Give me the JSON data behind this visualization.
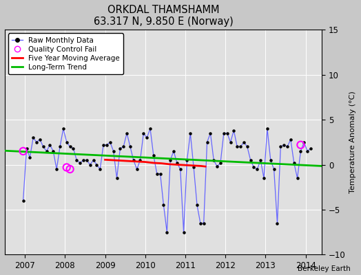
{
  "title": "ORKDAL THAMSHAMM",
  "subtitle": "63.317 N, 9.850 E (Norway)",
  "ylabel": "Temperature Anomaly (°C)",
  "credit": "Berkeley Earth",
  "xlim": [
    2006.5,
    2014.4
  ],
  "ylim": [
    -10,
    15
  ],
  "yticks": [
    -10,
    -5,
    0,
    5,
    10,
    15
  ],
  "fig_width": 5.24,
  "fig_height": 4.0,
  "dpi": 100,
  "background_color": "#e0e0e0",
  "fig_background": "#c8c8c8",
  "raw_color": "#6666ff",
  "moving_avg_color": "#ff0000",
  "trend_color": "#00bb00",
  "qc_color": "#ff00ff",
  "raw_data": {
    "times": [
      2006.958,
      2007.042,
      2007.125,
      2007.208,
      2007.292,
      2007.375,
      2007.458,
      2007.542,
      2007.625,
      2007.708,
      2007.792,
      2007.875,
      2007.958,
      2008.042,
      2008.125,
      2008.208,
      2008.292,
      2008.375,
      2008.458,
      2008.542,
      2008.625,
      2008.708,
      2008.792,
      2008.875,
      2008.958,
      2009.042,
      2009.125,
      2009.208,
      2009.292,
      2009.375,
      2009.458,
      2009.542,
      2009.625,
      2009.708,
      2009.792,
      2009.875,
      2009.958,
      2010.042,
      2010.125,
      2010.208,
      2010.292,
      2010.375,
      2010.458,
      2010.542,
      2010.625,
      2010.708,
      2010.792,
      2010.875,
      2010.958,
      2011.042,
      2011.125,
      2011.208,
      2011.292,
      2011.375,
      2011.458,
      2011.542,
      2011.625,
      2011.708,
      2011.792,
      2011.875,
      2011.958,
      2012.042,
      2012.125,
      2012.208,
      2012.292,
      2012.375,
      2012.458,
      2012.542,
      2012.625,
      2012.708,
      2012.792,
      2012.875,
      2012.958,
      2013.042,
      2013.125,
      2013.208,
      2013.292,
      2013.375,
      2013.458,
      2013.542,
      2013.625,
      2013.708,
      2013.792,
      2013.875,
      2013.958,
      2014.042,
      2014.125
    ],
    "values": [
      -4.0,
      1.8,
      0.8,
      3.0,
      2.5,
      2.8,
      2.0,
      1.5,
      2.2,
      1.5,
      -0.5,
      2.0,
      4.0,
      2.5,
      2.0,
      1.8,
      0.5,
      0.2,
      0.5,
      0.5,
      0.0,
      0.5,
      0.0,
      -0.5,
      2.2,
      2.2,
      2.5,
      1.5,
      -1.5,
      1.8,
      2.0,
      3.5,
      2.0,
      0.5,
      -0.5,
      0.5,
      3.5,
      3.0,
      4.0,
      1.0,
      -1.0,
      -1.0,
      -4.5,
      -7.5,
      0.5,
      1.5,
      0.2,
      -0.5,
      -7.5,
      0.5,
      3.5,
      -0.3,
      -4.5,
      -6.5,
      -6.5,
      2.5,
      3.5,
      0.5,
      -0.2,
      0.2,
      3.5,
      3.5,
      2.5,
      3.8,
      2.0,
      2.0,
      2.5,
      2.0,
      0.5,
      -0.3,
      -0.5,
      0.5,
      -1.5,
      4.0,
      0.5,
      -0.5,
      -6.5,
      2.0,
      2.2,
      2.0,
      2.8,
      0.2,
      -1.5,
      1.5,
      2.5,
      1.5,
      1.8
    ]
  },
  "moving_avg": {
    "times": [
      2009.0,
      2009.2,
      2009.4,
      2009.6,
      2009.8,
      2010.0,
      2010.2,
      2010.4,
      2010.6,
      2010.8,
      2011.0,
      2011.2,
      2011.4,
      2011.5
    ],
    "values": [
      0.55,
      0.5,
      0.45,
      0.4,
      0.35,
      0.3,
      0.2,
      0.15,
      0.05,
      0.0,
      -0.05,
      -0.1,
      -0.15,
      -0.2
    ]
  },
  "trend": {
    "times": [
      2006.5,
      2014.4
    ],
    "values": [
      1.55,
      -0.15
    ]
  },
  "qc_points": [
    {
      "time": 2006.958,
      "value": 1.5
    },
    {
      "time": 2008.042,
      "value": -0.3
    },
    {
      "time": 2008.125,
      "value": -0.5
    },
    {
      "time": 2013.875,
      "value": 2.2
    }
  ]
}
